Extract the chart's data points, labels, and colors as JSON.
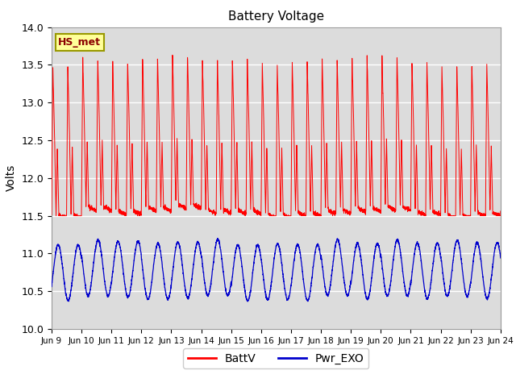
{
  "title": "Battery Voltage",
  "ylabel": "Volts",
  "ylim": [
    10.0,
    14.0
  ],
  "background_color": "#dcdcdc",
  "grid_color": "white",
  "red_color": "#ff0000",
  "blue_color": "#0000cc",
  "legend_label": "HS_met",
  "line1_label": "BattV",
  "line2_label": "Pwr_EXO",
  "yticks": [
    10.0,
    10.5,
    11.0,
    11.5,
    12.0,
    12.5,
    13.0,
    13.5,
    14.0
  ],
  "xtick_labels": [
    "Jun 9",
    "Jun 10",
    "Jun 11",
    "Jun 12",
    "Jun 13",
    "Jun 14",
    "Jun 15",
    "Jun 16",
    "Jun 17",
    "Jun 18",
    "Jun 19",
    "Jun 20",
    "Jun 21",
    "Jun 22",
    "Jun 23",
    "Jun 24"
  ],
  "num_days": 15,
  "points_per_day": 288
}
